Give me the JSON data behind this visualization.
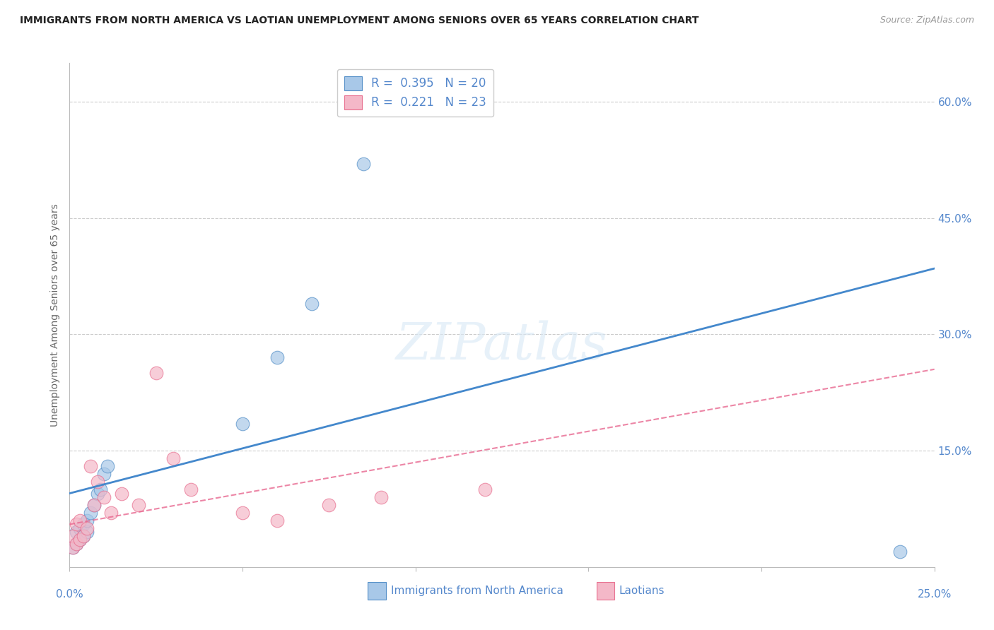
{
  "title": "IMMIGRANTS FROM NORTH AMERICA VS LAOTIAN UNEMPLOYMENT AMONG SENIORS OVER 65 YEARS CORRELATION CHART",
  "source": "Source: ZipAtlas.com",
  "ylabel": "Unemployment Among Seniors over 65 years",
  "right_yticks": [
    "60.0%",
    "45.0%",
    "30.0%",
    "15.0%"
  ],
  "right_ytick_vals": [
    0.6,
    0.45,
    0.3,
    0.15
  ],
  "legend1_R": "0.395",
  "legend1_N": "20",
  "legend2_R": "0.221",
  "legend2_N": "23",
  "blue_color": "#a8c8e8",
  "pink_color": "#f4b8c8",
  "blue_edge_color": "#5590c8",
  "pink_edge_color": "#e87090",
  "blue_line_color": "#4488cc",
  "pink_line_color": "#e86890",
  "axis_label_color": "#5588cc",
  "watermark": "ZIPatlas",
  "blue_scatter_x": [
    0.001,
    0.002,
    0.002,
    0.003,
    0.003,
    0.004,
    0.004,
    0.005,
    0.005,
    0.006,
    0.007,
    0.008,
    0.009,
    0.01,
    0.011,
    0.05,
    0.06,
    0.07,
    0.085,
    0.24
  ],
  "blue_scatter_y": [
    0.025,
    0.03,
    0.045,
    0.035,
    0.05,
    0.04,
    0.055,
    0.045,
    0.06,
    0.07,
    0.08,
    0.095,
    0.1,
    0.12,
    0.13,
    0.185,
    0.27,
    0.34,
    0.52,
    0.02
  ],
  "pink_scatter_x": [
    0.001,
    0.001,
    0.002,
    0.002,
    0.003,
    0.003,
    0.004,
    0.005,
    0.006,
    0.007,
    0.008,
    0.01,
    0.012,
    0.015,
    0.02,
    0.025,
    0.03,
    0.035,
    0.05,
    0.06,
    0.075,
    0.09,
    0.12
  ],
  "pink_scatter_y": [
    0.025,
    0.04,
    0.03,
    0.055,
    0.035,
    0.06,
    0.04,
    0.05,
    0.13,
    0.08,
    0.11,
    0.09,
    0.07,
    0.095,
    0.08,
    0.25,
    0.14,
    0.1,
    0.07,
    0.06,
    0.08,
    0.09,
    0.1
  ],
  "blue_line_x": [
    0.0,
    0.25
  ],
  "blue_line_y": [
    0.095,
    0.385
  ],
  "pink_line_x": [
    0.0,
    0.25
  ],
  "pink_line_y": [
    0.055,
    0.255
  ],
  "xlim": [
    0.0,
    0.25
  ],
  "ylim": [
    0.0,
    0.65
  ],
  "background_color": "#ffffff",
  "grid_color": "#cccccc",
  "marker_size": 180,
  "legend_x": "Immigrants from North America",
  "legend_y": "Laotians"
}
